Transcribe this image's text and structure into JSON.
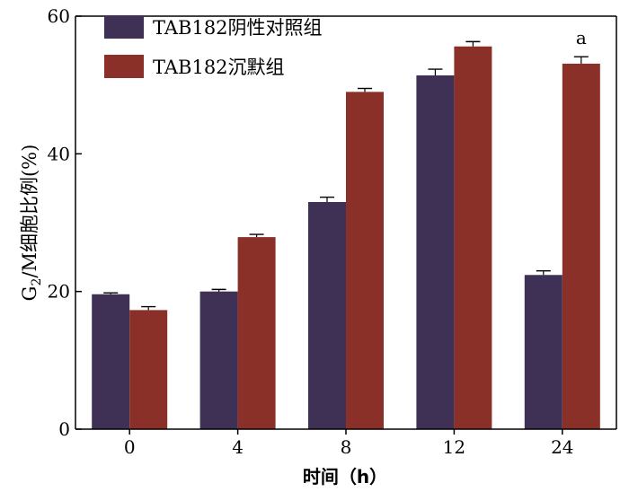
{
  "chart_data": {
    "type": "bar",
    "categories": [
      "0",
      "4",
      "8",
      "12",
      "24"
    ],
    "series": [
      {
        "name": "TAB182阴性对照组",
        "color": "#3f3056",
        "values": [
          19.6,
          20.0,
          33.0,
          51.4,
          22.4
        ],
        "errors": [
          0.2,
          0.3,
          0.7,
          0.9,
          0.6
        ]
      },
      {
        "name": "TAB182沉默组",
        "color": "#8b3029",
        "values": [
          17.3,
          27.9,
          49.0,
          55.6,
          53.1
        ],
        "errors": [
          0.5,
          0.4,
          0.5,
          0.7,
          1.0
        ]
      }
    ],
    "ylim": [
      0,
      60
    ],
    "yticks": [
      0,
      20,
      40,
      60
    ],
    "ylabel_main": "G",
    "ylabel_sub": "2",
    "ylabel_rest": "/M细胞比例(%)",
    "xlabel": "时间（h）",
    "legend_position": "top-left",
    "annotations": [
      {
        "category": "24",
        "series": 1,
        "text": "a"
      }
    ]
  }
}
